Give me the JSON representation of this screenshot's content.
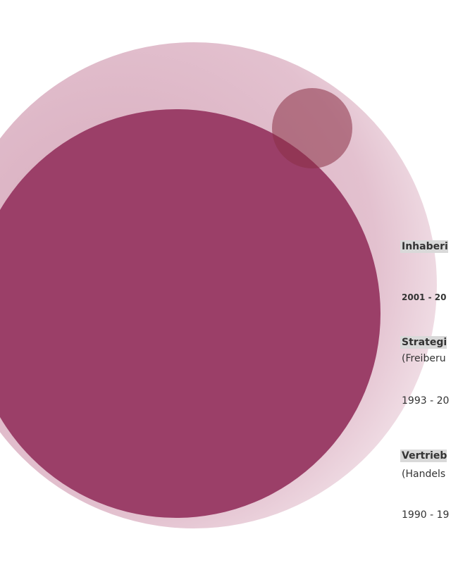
{
  "entries": [
    {
      "title": "Inhaberi",
      "period": "2001 - 20"
    },
    {
      "title": "Strategi",
      "note": "(Freiberu",
      "period": "1993 - 20"
    },
    {
      "title": "Vertrieb",
      "note": "(Handels",
      "period": "1990 - 19"
    }
  ]
}
